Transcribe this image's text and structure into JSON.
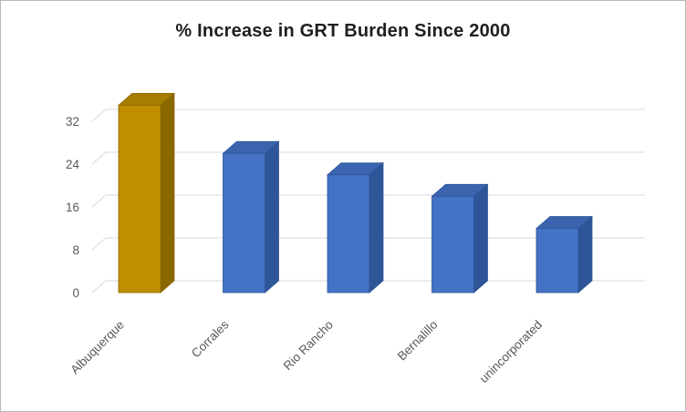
{
  "title": "% Increase in GRT Burden Since 2000",
  "chart_data": {
    "type": "bar",
    "style": "3d-column",
    "title": "% Increase in GRT Burden Since 2000",
    "categories": [
      "Albuquerque",
      "Corrales",
      "Rio Rancho",
      "Bernalillo",
      "unincorporated"
    ],
    "values": [
      35,
      26,
      22,
      18,
      12
    ],
    "xlabel": "",
    "ylabel": "",
    "ylim": [
      0,
      36
    ],
    "yticks": [
      0,
      8,
      16,
      24,
      32
    ],
    "grid": true,
    "legend": false,
    "highlight_index": 0,
    "colors": {
      "highlight_front": "#BF8F00",
      "highlight_top": "#A57D00",
      "highlight_side": "#8A6800",
      "default_front": "#4472C4",
      "default_top": "#3A64AE",
      "default_side": "#2E5597",
      "grid": "#D9D9D9",
      "tick_text": "#595959",
      "title_text": "#1F1F1F"
    }
  }
}
